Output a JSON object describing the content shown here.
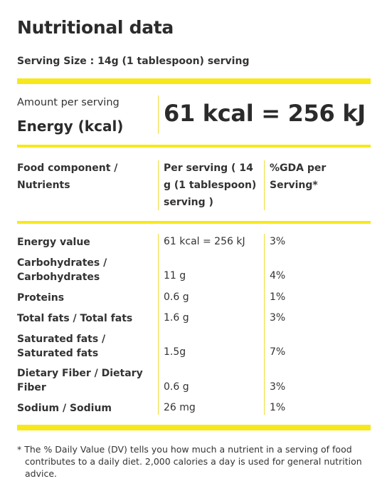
{
  "title": "Nutritional data",
  "serving_size": "Serving Size : 14g (1 tablespoon) serving",
  "amount_label": "Amount per serving",
  "energy_label": "Energy (kcal)",
  "energy_value": "61 kcal = 256 kJ",
  "table": {
    "headers": {
      "component": "Food component / Nutrients",
      "per_serving": "Per serving ( 14 g (1 tablespoon) serving )",
      "gda": "%GDA per Serving*"
    },
    "rows": [
      {
        "name": "Energy value",
        "value": "61 kcal = 256 kJ",
        "pct": "3%"
      },
      {
        "name": "Carbohydrates / Carbohydrates",
        "value": "11 g",
        "pct": "4%"
      },
      {
        "name": "Proteins",
        "value": "0.6 g",
        "pct": "1%"
      },
      {
        "name": "Total fats / Total fats",
        "value": "1.6 g",
        "pct": "3%"
      },
      {
        "name": "Saturated fats / Saturated fats",
        "value": "1.5g",
        "pct": "7%"
      },
      {
        "name": "Dietary Fiber / Dietary Fiber",
        "value": "0.6 g",
        "pct": "3%"
      },
      {
        "name": "Sodium / Sodium",
        "value": "26 mg",
        "pct": "1%"
      }
    ]
  },
  "footnote": "* The % Daily Value (DV) tells you how much a nutrient in a serving of food contributes to a daily diet. 2,000 calories a day is used for general nutrition advice.",
  "colors": {
    "accent": "#f7e81c",
    "text": "#2b2b2b"
  }
}
